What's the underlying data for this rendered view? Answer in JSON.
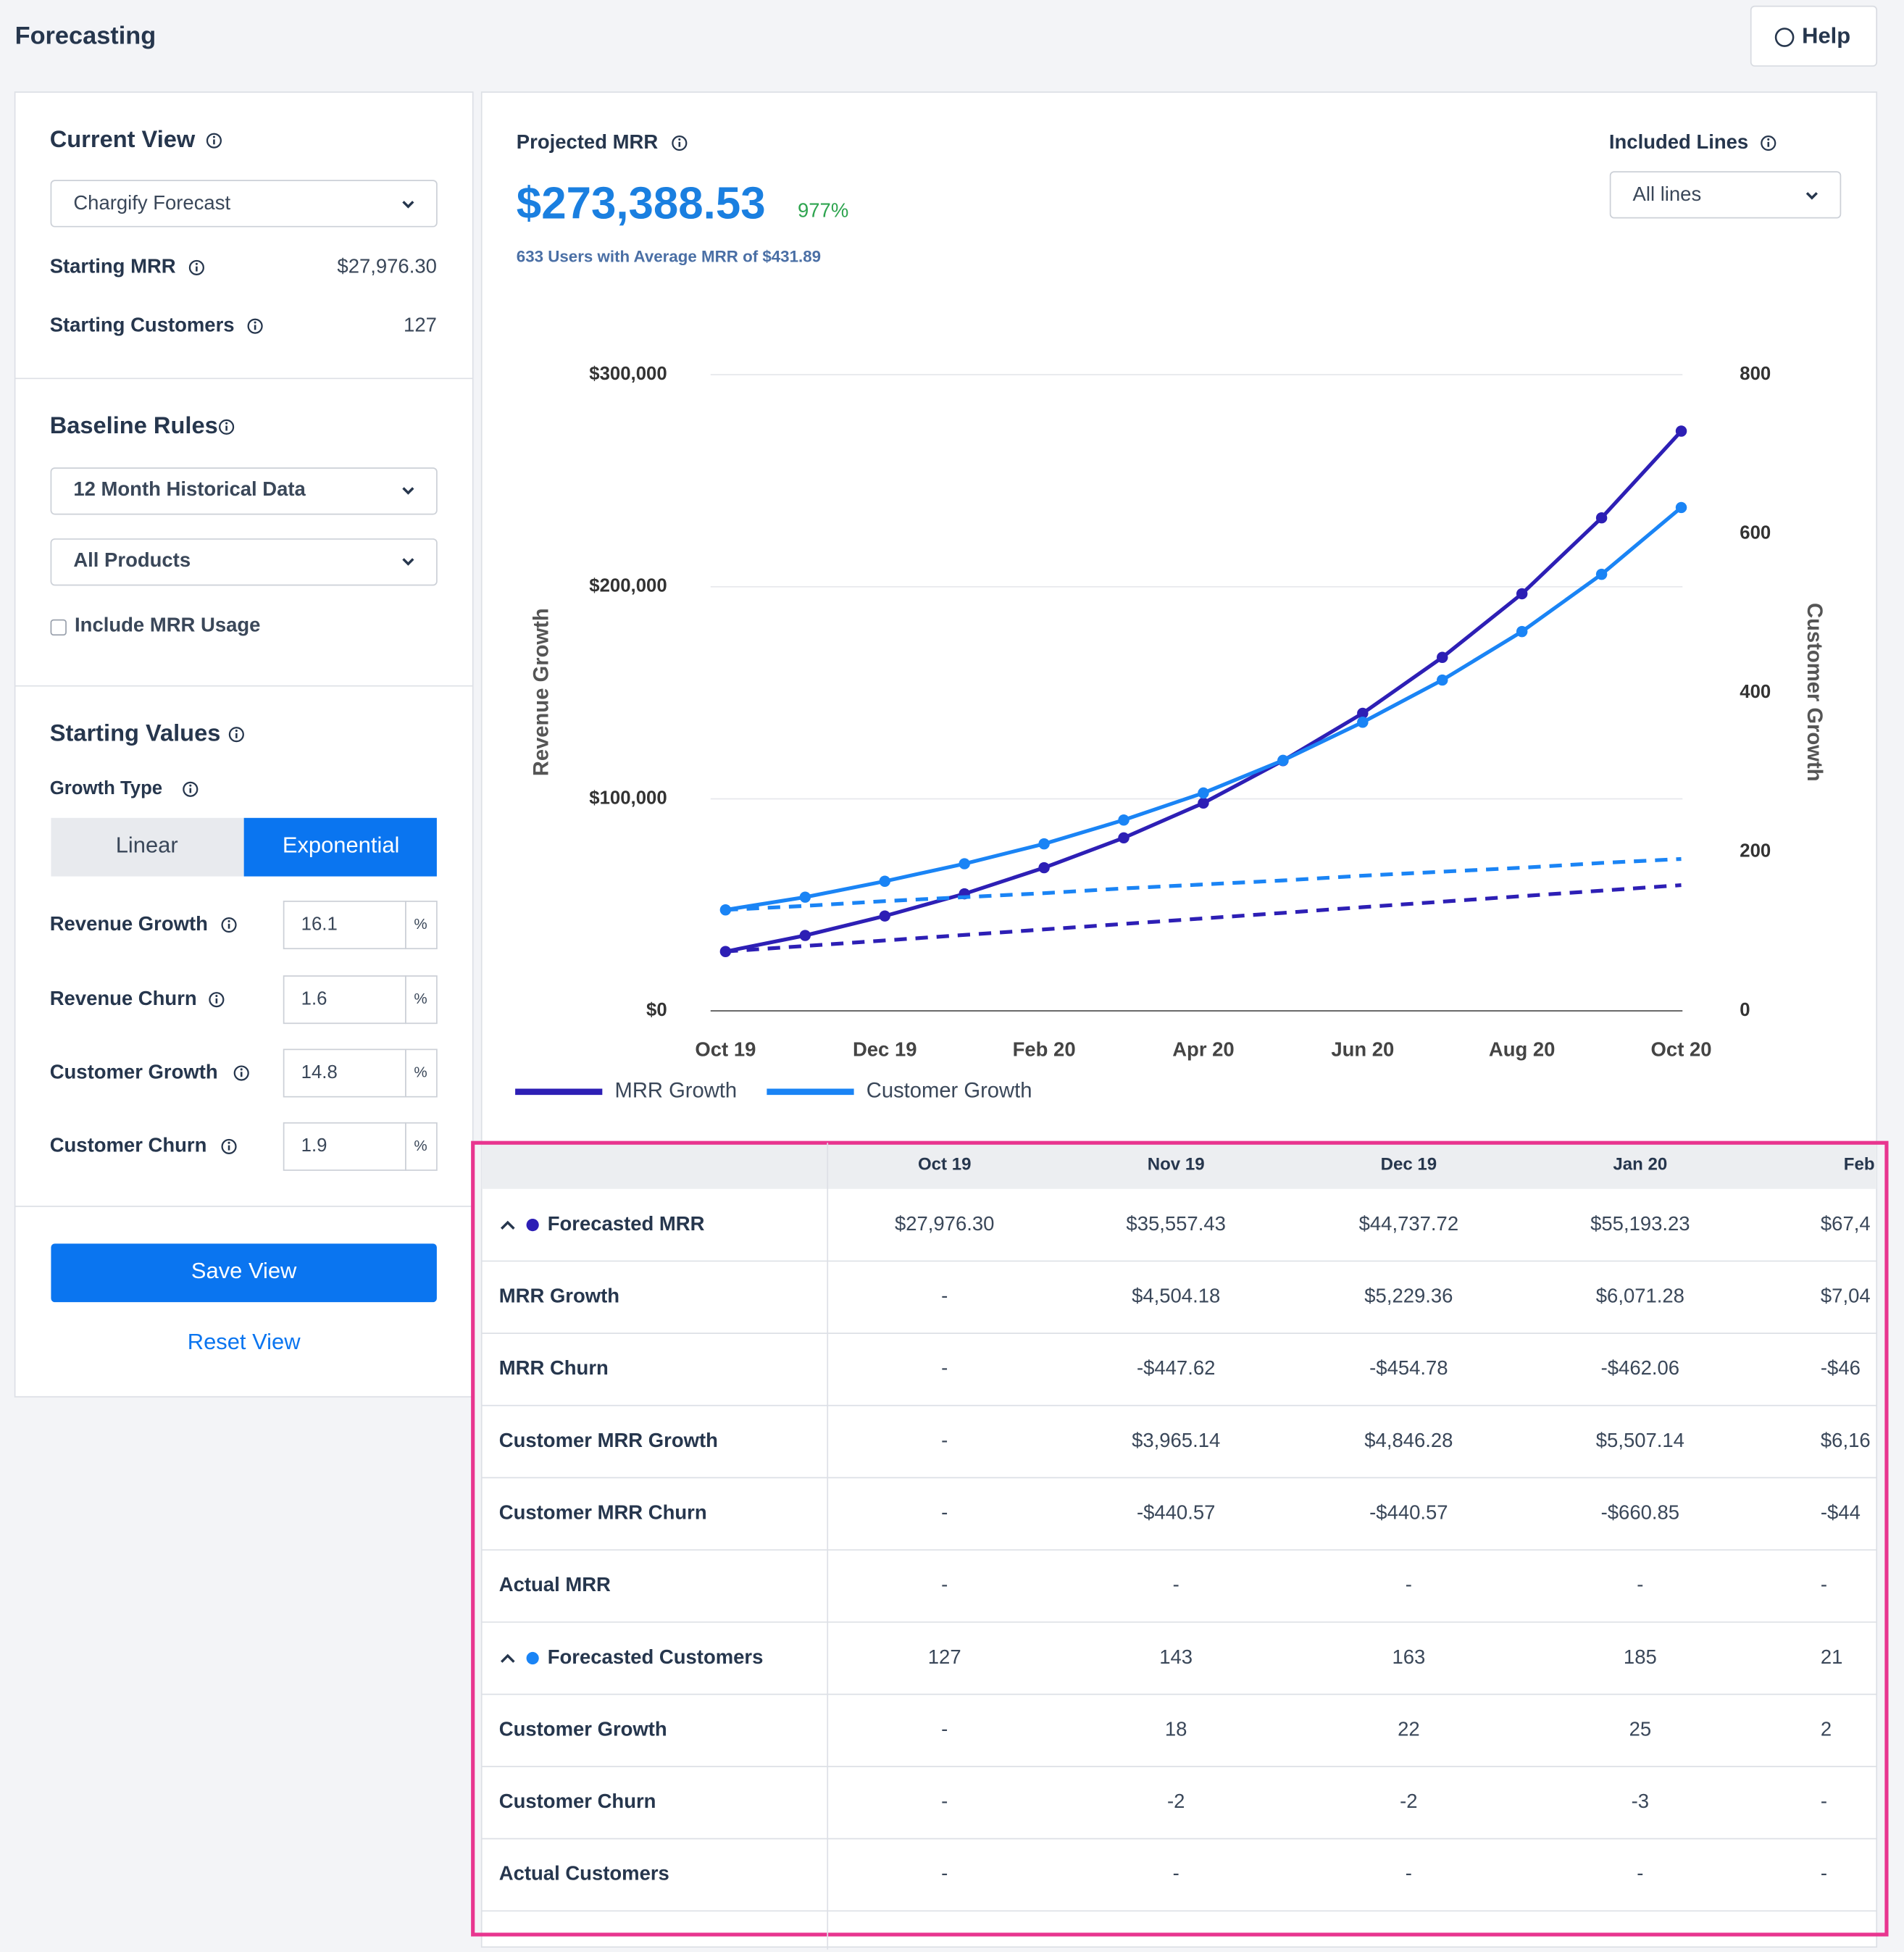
{
  "header": {
    "title": "Forecasting",
    "help": "Help"
  },
  "sidebar": {
    "current_view": {
      "title": "Current View",
      "select": "Chargify Forecast",
      "starting_mrr_label": "Starting MRR",
      "starting_mrr": "$27,976.30",
      "starting_customers_label": "Starting Customers",
      "starting_customers": "127"
    },
    "baseline": {
      "title": "Baseline Rules",
      "history_select": "12 Month Historical Data",
      "product_select": "All Products",
      "usage_checkbox": "Include MRR Usage"
    },
    "starting_values": {
      "title": "Starting Values",
      "growth_type_label": "Growth Type",
      "linear": "Linear",
      "exponential": "Exponential",
      "fields": [
        {
          "label": "Revenue Growth",
          "value": "16.1",
          "unit": "%"
        },
        {
          "label": "Revenue Churn",
          "value": "1.6",
          "unit": "%"
        },
        {
          "label": "Customer Growth",
          "value": "14.8",
          "unit": "%"
        },
        {
          "label": "Customer Churn",
          "value": "1.9",
          "unit": "%"
        }
      ]
    },
    "save": "Save View",
    "reset": "Reset View"
  },
  "summary": {
    "label": "Projected MRR",
    "value": "$273,388.53",
    "change": "977%",
    "subtitle": "633 Users with Average MRR of $431.89",
    "included_label": "Included Lines",
    "included_select": "All lines"
  },
  "chart_data": {
    "type": "line",
    "y_label": "Revenue Growth",
    "y2_label": "Customer Growth",
    "categories": [
      "Oct 19",
      null,
      "Dec 19",
      null,
      "Feb 20",
      null,
      "Apr 20",
      null,
      "Jun 20",
      null,
      "Aug 20",
      null,
      "Oct 20"
    ],
    "ylim": [
      0,
      300000
    ],
    "yticks": [
      {
        "value": 0,
        "label": "$0"
      },
      {
        "value": 100000,
        "label": "$100,000"
      },
      {
        "value": 200000,
        "label": "$200,000"
      },
      {
        "value": 300000,
        "label": "$300,000"
      }
    ],
    "y2lim": [
      0,
      800
    ],
    "y2ticks": [
      0,
      200,
      400,
      600,
      800
    ],
    "grid": true,
    "series": [
      {
        "name": "MRR Growth",
        "color": "#2d1fb5",
        "values": [
          27976,
          35557,
          44738,
          55193,
          67500,
          81600,
          98000,
          118000,
          140300,
          166700,
          196700,
          232500,
          273389
        ]
      },
      {
        "name": "Customer Growth",
        "color": "#1a84f5",
        "axis": "y2",
        "values": [
          127,
          143,
          163,
          185,
          210,
          240,
          274,
          315,
          363,
          416,
          477,
          549,
          633
        ]
      },
      {
        "color": "#2d1fb5",
        "dashed": true,
        "values": [
          28000,
          30600,
          33200,
          35800,
          38400,
          41000,
          43600,
          46200,
          48900,
          51500,
          54100,
          56700,
          59300
        ]
      },
      {
        "color": "#1a84f5",
        "dashed": true,
        "axis": "y2",
        "values": [
          127,
          132,
          138,
          143,
          148,
          154,
          159,
          164,
          170,
          175,
          180,
          186,
          191
        ]
      }
    ]
  },
  "table": {
    "columns": [
      "Oct 19",
      "Nov 19",
      "Dec 19",
      "Jan 20",
      "Feb"
    ],
    "rows": [
      {
        "label": "Forecasted MRR",
        "cells": [
          "$27,976.30",
          "$35,557.43",
          "$44,737.72",
          "$55,193.23",
          "$67,4"
        ]
      },
      {
        "label": "MRR Growth",
        "cells": [
          "-",
          "$4,504.18",
          "$5,229.36",
          "$6,071.28",
          "$7,04"
        ]
      },
      {
        "label": "MRR Churn",
        "cells": [
          "-",
          "-$447.62",
          "-$454.78",
          "-$462.06",
          "-$46"
        ]
      },
      {
        "label": "Customer MRR Growth",
        "cells": [
          "-",
          "$3,965.14",
          "$4,846.28",
          "$5,507.14",
          "$6,16"
        ]
      },
      {
        "label": "Customer MRR Churn",
        "cells": [
          "-",
          "-$440.57",
          "-$440.57",
          "-$660.85",
          "-$44"
        ]
      },
      {
        "label": "Actual MRR",
        "cells": [
          "-",
          "-",
          "-",
          "-",
          "-"
        ]
      },
      {
        "label": "Forecasted Customers",
        "cells": [
          "127",
          "143",
          "163",
          "185",
          "21"
        ]
      },
      {
        "label": "Customer Growth",
        "cells": [
          "-",
          "18",
          "22",
          "25",
          "2"
        ]
      },
      {
        "label": "Customer Churn",
        "cells": [
          "-",
          "-2",
          "-2",
          "-3",
          "-"
        ]
      },
      {
        "label": "Actual Customers",
        "cells": [
          "-",
          "-",
          "-",
          "-",
          "-"
        ]
      }
    ]
  }
}
